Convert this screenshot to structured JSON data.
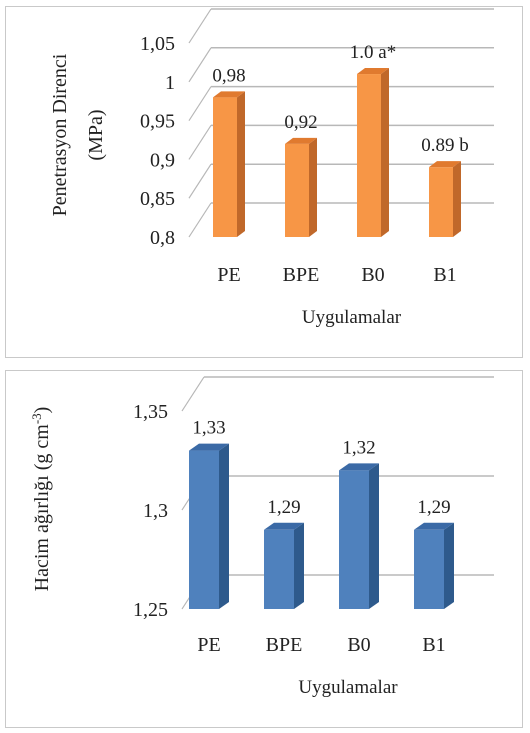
{
  "chart_data": [
    {
      "type": "bar",
      "categories": [
        "PE",
        "BPE",
        "B0",
        "B1"
      ],
      "values": [
        0.98,
        0.92,
        1.01,
        0.89
      ],
      "data_labels": [
        "0,98",
        "0,92",
        "1.0 a*",
        "0.89 b"
      ],
      "xlabel": "Uygulamalar",
      "ylabel": [
        "Penetrasyon Direnci",
        "(MPa)"
      ],
      "ylim": [
        0.8,
        1.05
      ],
      "y_ticks": [
        0.8,
        0.85,
        0.9,
        0.95,
        1.0,
        1.05
      ],
      "y_tick_labels": [
        "0,8",
        "0,85",
        "0,9",
        "0,95",
        "1",
        "1,05"
      ],
      "grid": true,
      "bar_color": "#F79646",
      "bar_side_color": "#C0682A",
      "bar_top_color": "#E07A2F"
    },
    {
      "type": "bar",
      "categories": [
        "PE",
        "BPE",
        "B0",
        "B1"
      ],
      "values": [
        1.33,
        1.29,
        1.32,
        1.29
      ],
      "data_labels": [
        "1,33",
        "1,29",
        "1,32",
        "1,29"
      ],
      "xlabel": "Uygulamalar",
      "ylabel": [
        "Hacim ağırlığı (g cm",
        "-3",
        ")"
      ],
      "ylim": [
        1.25,
        1.35
      ],
      "y_ticks": [
        1.25,
        1.3,
        1.35
      ],
      "y_tick_labels": [
        "1,25",
        "1,3",
        "1,35"
      ],
      "grid": true,
      "bar_color": "#4F81BD",
      "bar_side_color": "#2E5A8C",
      "bar_top_color": "#3B6AA6"
    }
  ]
}
